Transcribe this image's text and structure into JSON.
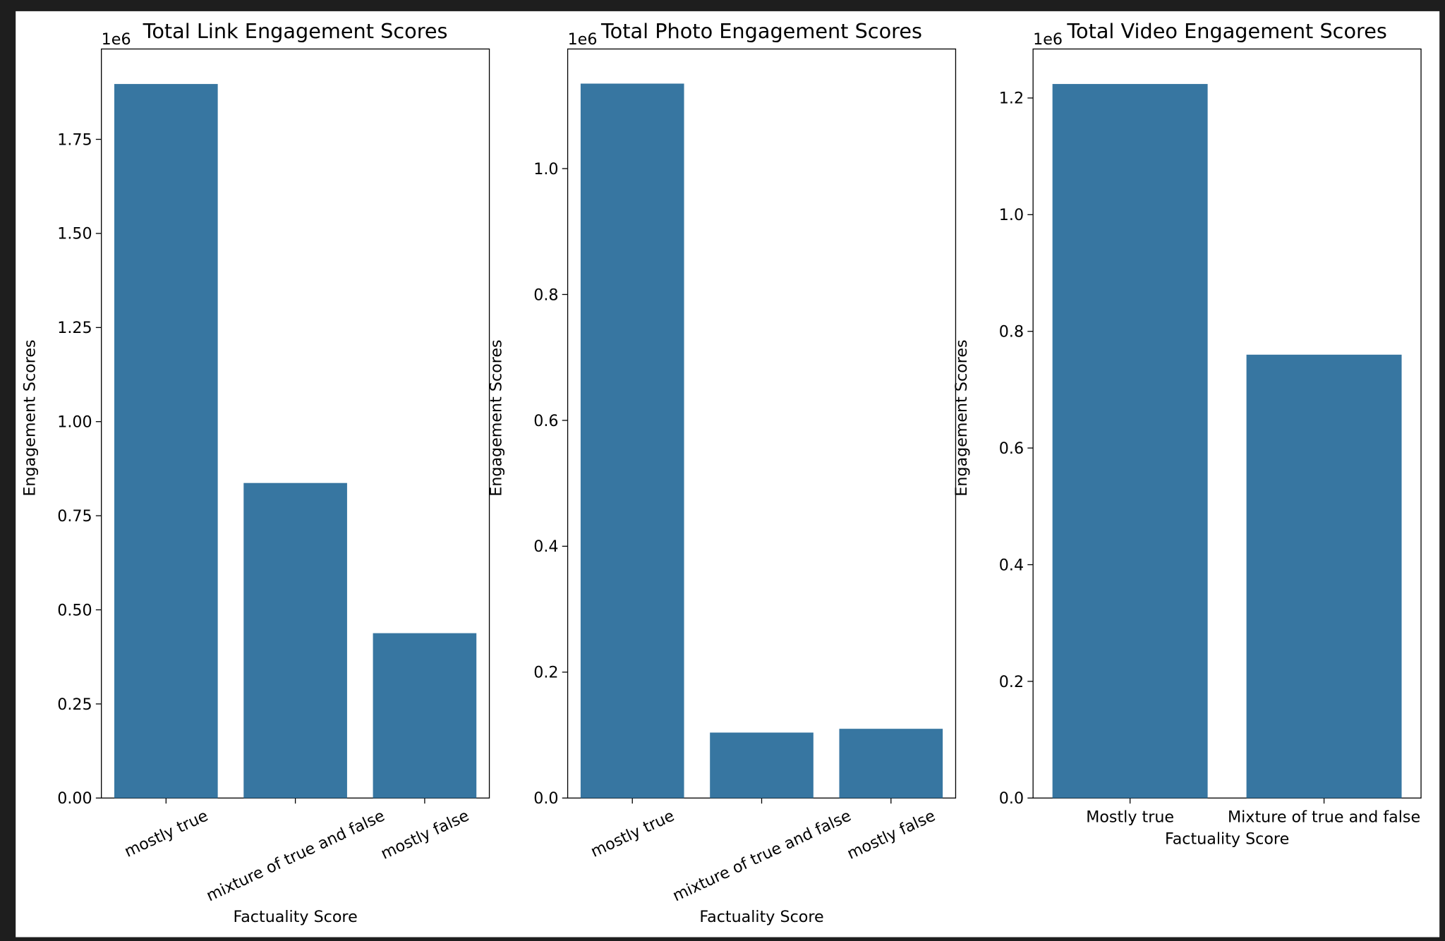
{
  "chart_data": [
    {
      "type": "bar",
      "title": "Total Link Engagement Scores",
      "x_label": "Factuality Score",
      "y_label": "Engagement Scores",
      "y_offset_label": "1e6",
      "categories": [
        "mostly true",
        "mixture of true and false",
        "mostly false"
      ],
      "values": [
        1.897,
        0.837,
        0.438
      ],
      "color": "#3776a1",
      "ylim": [
        0,
        1.99
      ],
      "yticks": [
        {
          "value": 0,
          "label": "0.00"
        },
        0.25,
        {
          "value": 0.5,
          "label": "0.50"
        },
        0.75,
        {
          "value": 1,
          "label": "1.00"
        },
        1.25,
        {
          "value": 1.5,
          "label": "1.50"
        },
        1.75
      ],
      "xtick_rotation": 25
    },
    {
      "type": "bar",
      "title": "Total Photo Engagement Scores",
      "x_label": "Factuality Score",
      "y_label": "Engagement Scores",
      "y_offset_label": "1e6",
      "categories": [
        "mostly true",
        "mixture of true and false",
        "mostly false"
      ],
      "values": [
        1.135,
        0.104,
        0.11
      ],
      "color": "#3776a1",
      "ylim": [
        0,
        1.19
      ],
      "yticks": [
        {
          "value": 0,
          "label": "0.0"
        },
        0.2,
        0.4,
        0.6,
        0.8,
        {
          "value": 1,
          "label": "1.0"
        }
      ],
      "xtick_rotation": 25
    },
    {
      "type": "bar",
      "title": "Total Video Engagement Scores",
      "x_label": "Factuality Score",
      "y_label": "Engagement Scores",
      "y_offset_label": "1e6",
      "categories": [
        "Mostly true",
        "Mixture of true and false"
      ],
      "values": [
        1.224,
        0.76
      ],
      "color": "#3776a1",
      "ylim": [
        0,
        1.284
      ],
      "yticks": [
        {
          "value": 0,
          "label": "0.0"
        },
        0.2,
        0.4,
        0.6,
        0.8,
        {
          "value": 1,
          "label": "1.0"
        },
        1.2
      ],
      "xtick_rotation": 0
    }
  ]
}
